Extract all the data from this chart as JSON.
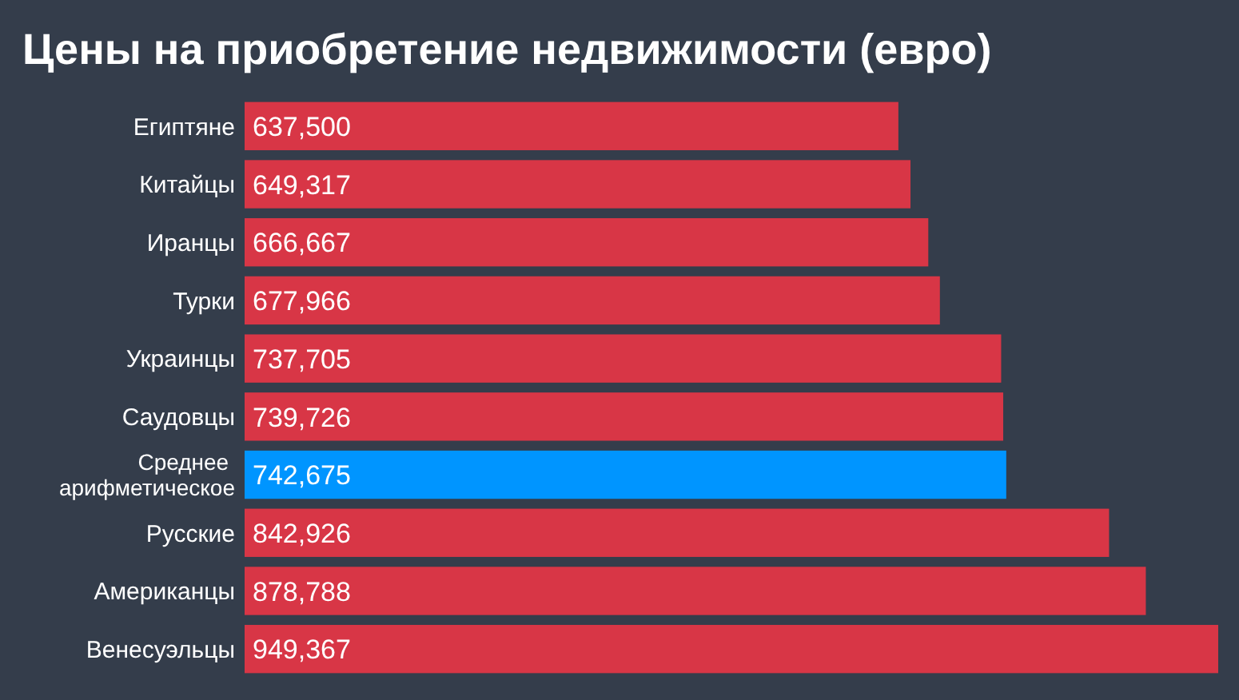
{
  "chart_data": {
    "type": "bar",
    "orientation": "horizontal",
    "title": "Цены на приобретение недвижимости (евро)",
    "categories": [
      "Египтяне",
      "Китайцы",
      "Иранцы",
      "Турки",
      "Украинцы",
      "Саудовцы",
      "Среднее арифметическое",
      "Русские",
      "Американцы",
      "Венесуэльцы"
    ],
    "values": [
      637500,
      649317,
      666667,
      677966,
      737705,
      739726,
      742675,
      842926,
      878788,
      949367
    ],
    "colors": [
      "#d83646",
      "#d83646",
      "#d83646",
      "#d83646",
      "#d83646",
      "#d83646",
      "#0095ff",
      "#d83646",
      "#d83646",
      "#d83646"
    ],
    "value_labels": [
      "637,500",
      "649,317",
      "666,667",
      "677,966",
      "737,705",
      "739,726",
      "742,675",
      "842,926",
      "878,788",
      "949,367"
    ]
  }
}
